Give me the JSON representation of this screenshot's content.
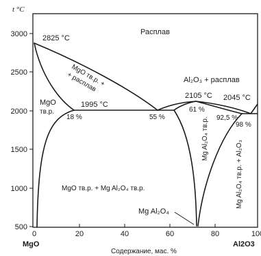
{
  "y_axis": {
    "title": "t °C",
    "tick_labels": [
      "3000",
      "2500",
      "2000",
      "1500",
      "1000",
      "500"
    ]
  },
  "x_axis": {
    "left_component": "MgO",
    "right_component": "Al2O3",
    "title": "Содержание, мас. %",
    "tick_labels": [
      "0",
      "20",
      "40",
      "60",
      "80",
      "100"
    ]
  },
  "temperature_labels": {
    "mgo_melting": "2825 °C",
    "eutectic_left": "1995 °C",
    "spinel_max": "2105 °C",
    "eutectic_right": "2045 °C"
  },
  "composition_labels": {
    "left_solubility": "18 %",
    "eutectic_left_comp": "55 %",
    "spinel_left": "61 %",
    "spinel_right": "92,5 %",
    "eutectic_right_comp": "98 %"
  },
  "region_labels": {
    "melt": "Расплав",
    "al2o3_melt": "Al₂O₃ + расплав",
    "mgo_melt_line1": "MgO тв.р. +",
    "mgo_melt_line2": "+ расплав",
    "mgo_solid_line1": "MgO",
    "mgo_solid_line2": "тв.р.",
    "mgo_spinel": "MgO тв.р. + Mg Al₂O₄ тв.р.",
    "spinel_ss": "Mg Al₂O₄ тв.р.",
    "spinel_al2o3": "Mg Al₂O₄ тв.р. + Al₂O₃",
    "spinel_pointer": "Mg Al₂O₄"
  }
}
